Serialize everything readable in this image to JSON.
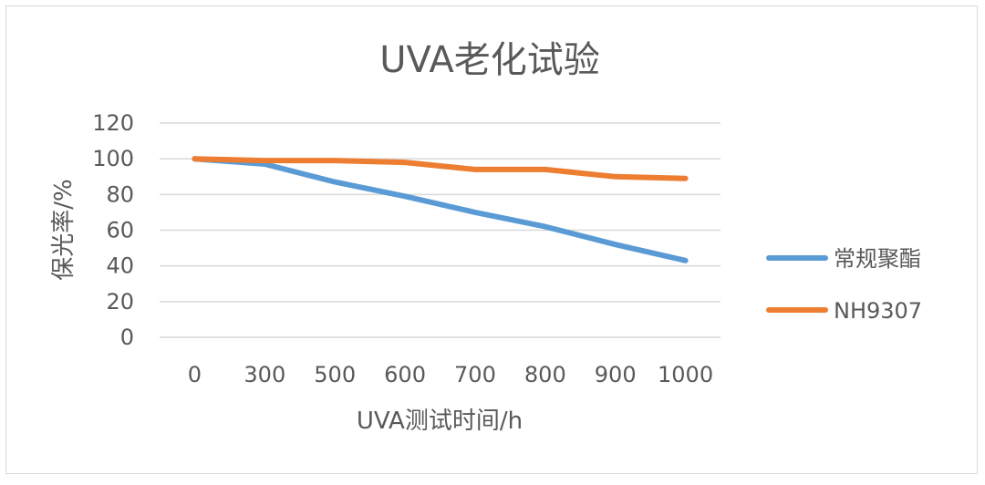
{
  "chart_data": {
    "type": "line",
    "title": "UVA老化试验",
    "xlabel": "UVA测试时间/h",
    "ylabel": "保光率/%",
    "categories": [
      "0",
      "300",
      "500",
      "600",
      "700",
      "800",
      "900",
      "1000"
    ],
    "ylim": [
      0,
      120
    ],
    "yticks": [
      "0",
      "20",
      "40",
      "60",
      "80",
      "100",
      "120"
    ],
    "grid": true,
    "legend_position": "right",
    "series": [
      {
        "name": "常规聚酯",
        "color": "#5b9bd5",
        "values": [
          100,
          97,
          87,
          79,
          70,
          62,
          52,
          43
        ]
      },
      {
        "name": "NH9307",
        "color": "#ed7d31",
        "values": [
          100,
          99,
          99,
          98,
          94,
          94,
          90,
          89
        ]
      }
    ]
  }
}
